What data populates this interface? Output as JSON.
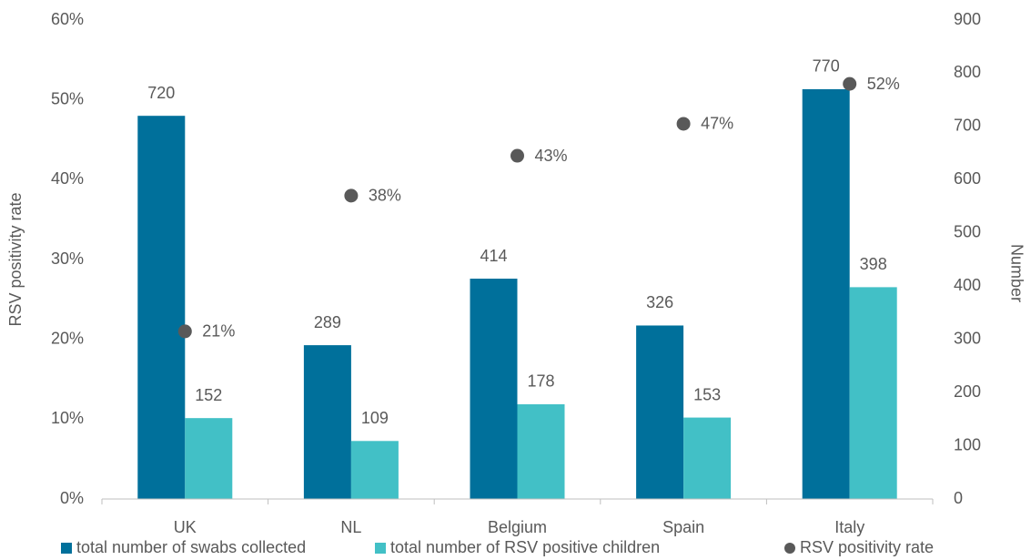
{
  "chart_data": {
    "type": "bar",
    "categories": [
      "UK",
      "NL",
      "Belgium",
      "Spain",
      "Italy"
    ],
    "y_label": "RSV positivity rate",
    "y2_label": "Number",
    "ylim": [
      0,
      60
    ],
    "yticks": [
      {
        "value": 0,
        "label": "0%"
      },
      {
        "value": 10,
        "label": "10%"
      },
      {
        "value": 20,
        "label": "20%"
      },
      {
        "value": 30,
        "label": "30%"
      },
      {
        "value": 40,
        "label": "40%"
      },
      {
        "value": 50,
        "label": "50%"
      },
      {
        "value": 60,
        "label": "60%"
      }
    ],
    "y2lim": [
      0,
      900
    ],
    "y2ticks": [
      0,
      100,
      200,
      300,
      400,
      500,
      600,
      700,
      800,
      900
    ],
    "legend": "bottom",
    "series": [
      {
        "name": "total number of swabs collected",
        "type": "bar",
        "axis": "y2",
        "color": "#00709b",
        "values": [
          720,
          289,
          414,
          326,
          770
        ]
      },
      {
        "name": "total number of RSV positive children",
        "type": "bar",
        "axis": "y2",
        "color": "#42c0c6",
        "values": [
          152,
          109,
          178,
          153,
          398
        ]
      },
      {
        "name": "RSV positivity rate",
        "type": "scatter",
        "axis": "y",
        "color": "#595959",
        "values": [
          21,
          38,
          43,
          47,
          52
        ],
        "value_labels": [
          "21%",
          "38%",
          "43%",
          "47%",
          "52%"
        ]
      }
    ]
  }
}
